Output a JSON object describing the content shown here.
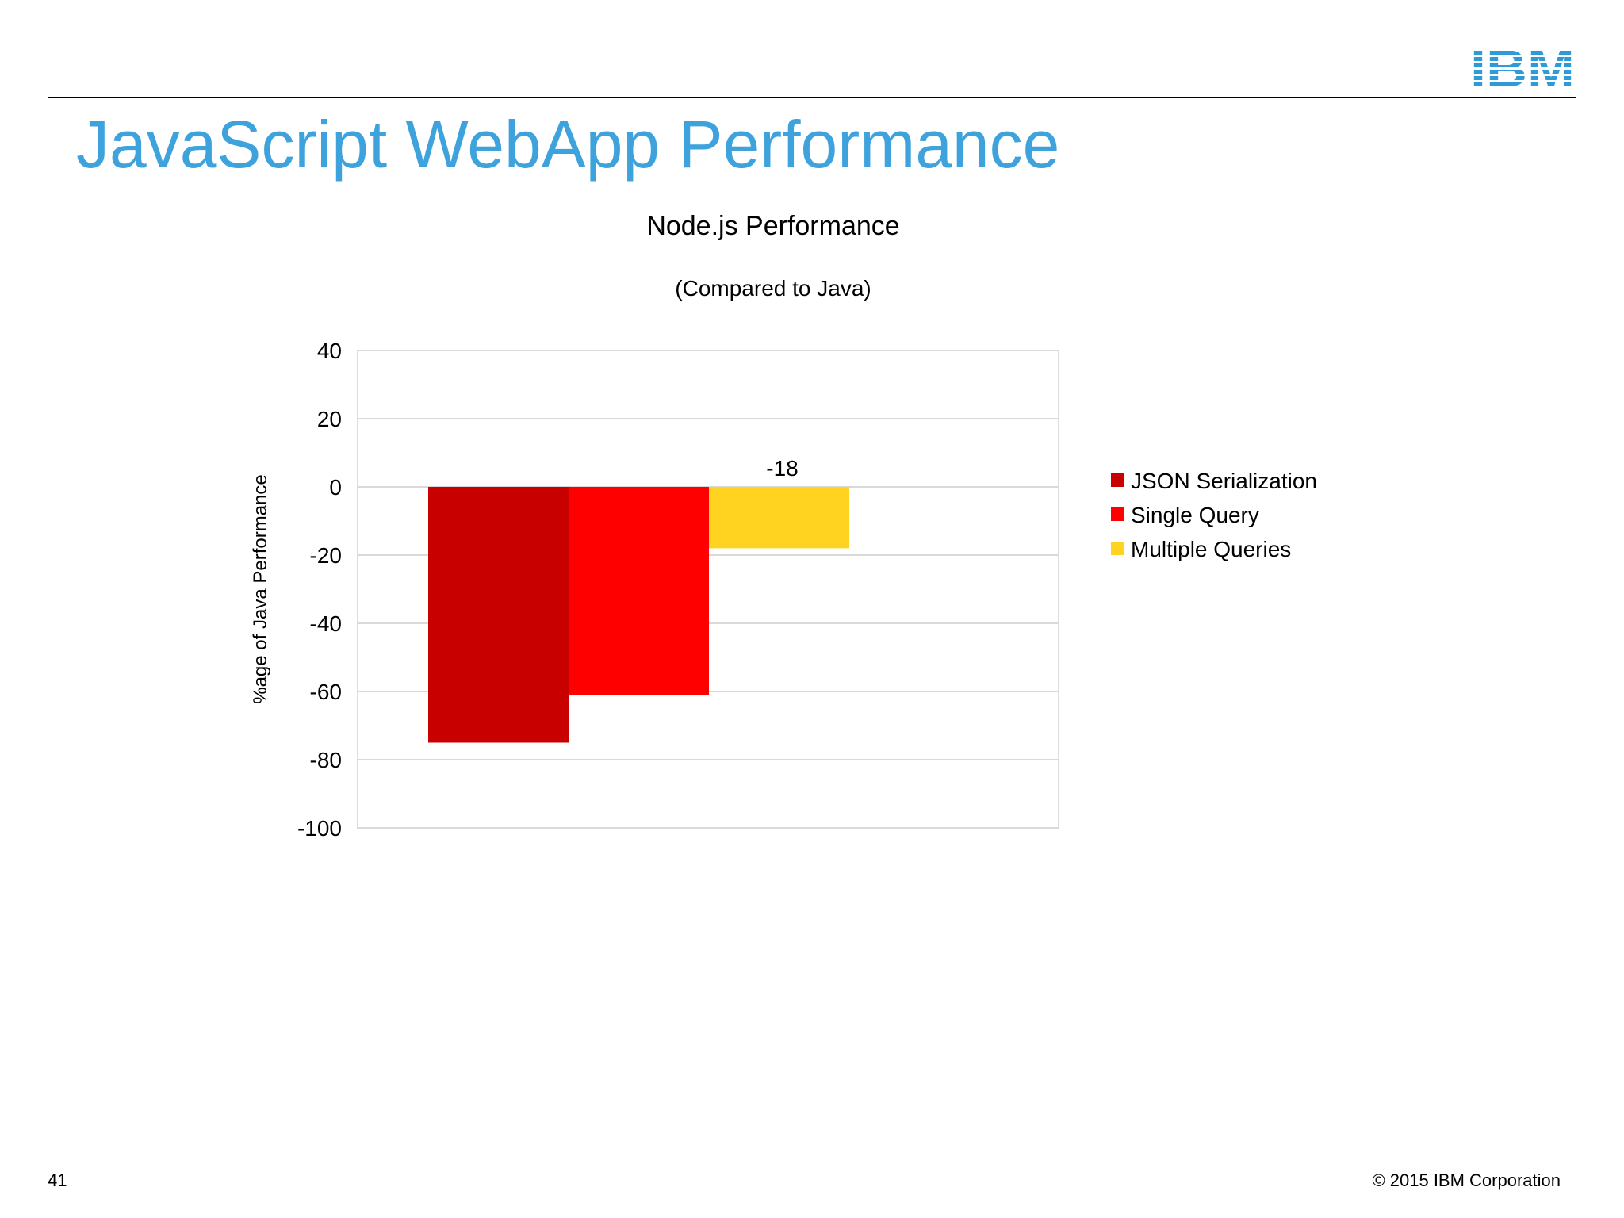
{
  "slide": {
    "title": "JavaScript WebApp Performance",
    "page_number": "41",
    "copyright": "© 2015 IBM Corporation",
    "logo_text": "IBM",
    "title_color": "#3ea3dc",
    "logo_color": "#2f9ad8"
  },
  "chart_data": {
    "type": "bar",
    "title": "Node.js Performance",
    "subtitle": "(Compared to Java)",
    "xlabel": "",
    "ylabel": "%age of Java Performance",
    "ylim": [
      -100,
      40
    ],
    "yticks": [
      40,
      20,
      0,
      -20,
      -40,
      -60,
      -80,
      -100
    ],
    "grid": true,
    "legend_position": "right",
    "categories": [
      ""
    ],
    "series": [
      {
        "name": "JSON Serialization",
        "values": [
          -75
        ],
        "color": "#c80000",
        "data_label": ""
      },
      {
        "name": "Single Query",
        "values": [
          -61
        ],
        "color": "#ff0000",
        "data_label": ""
      },
      {
        "name": "Multiple Queries",
        "values": [
          -18
        ],
        "color": "#ffd320",
        "data_label": "-18"
      }
    ]
  }
}
